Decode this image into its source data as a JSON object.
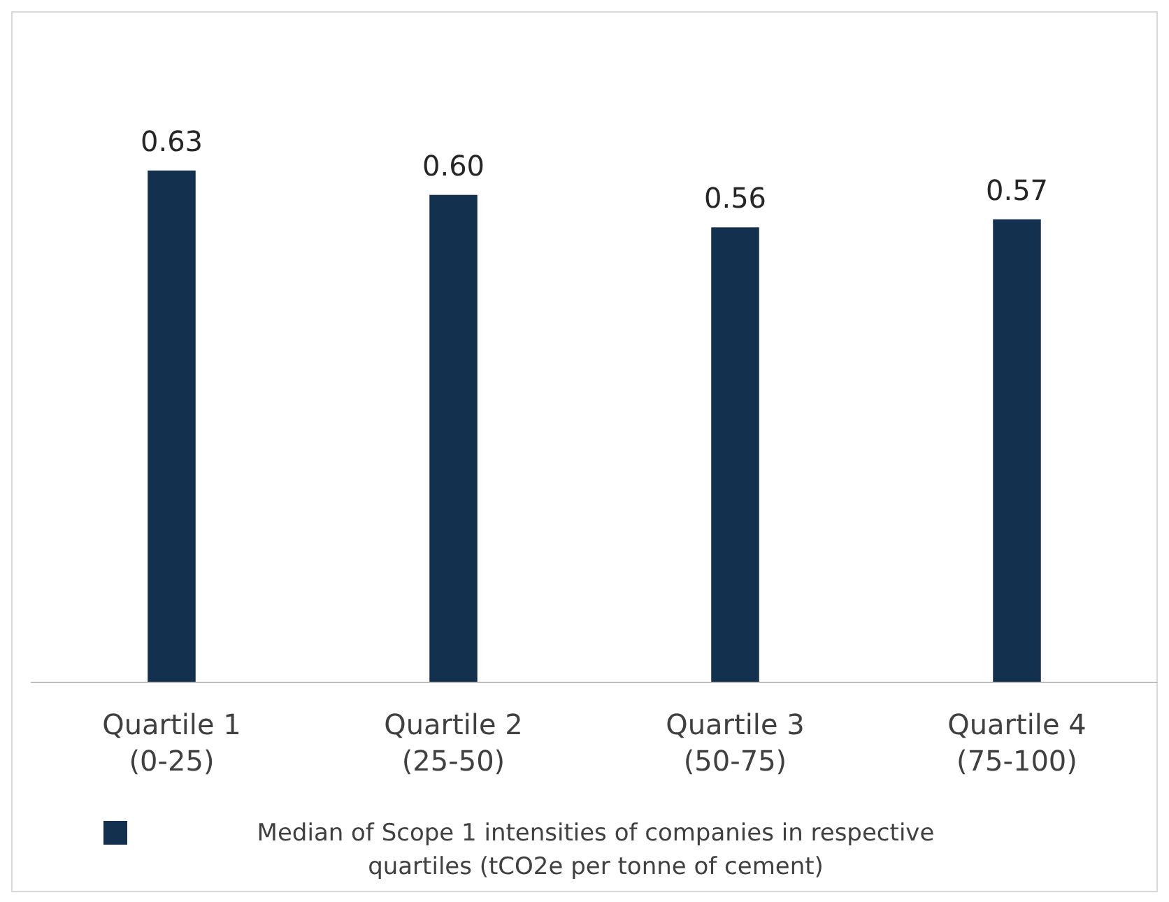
{
  "chart_data": {
    "type": "bar",
    "categories": [
      "Quartile 1 (0-25)",
      "Quartile 2 (25-50)",
      "Quartile 3 (50-75)",
      "Quartile 4 (75-100)"
    ],
    "series": [
      {
        "name": "Median of Scope 1 intensities of companies in respective quartiles (tCO2e per tonne of cement)",
        "color": "#14304f",
        "values": [
          0.63,
          0.6,
          0.56,
          0.57
        ],
        "value_labels": [
          "0.63",
          "0.60",
          "0.56",
          "0.57"
        ]
      }
    ],
    "tick_labels": "x",
    "legend": "bottom"
  }
}
